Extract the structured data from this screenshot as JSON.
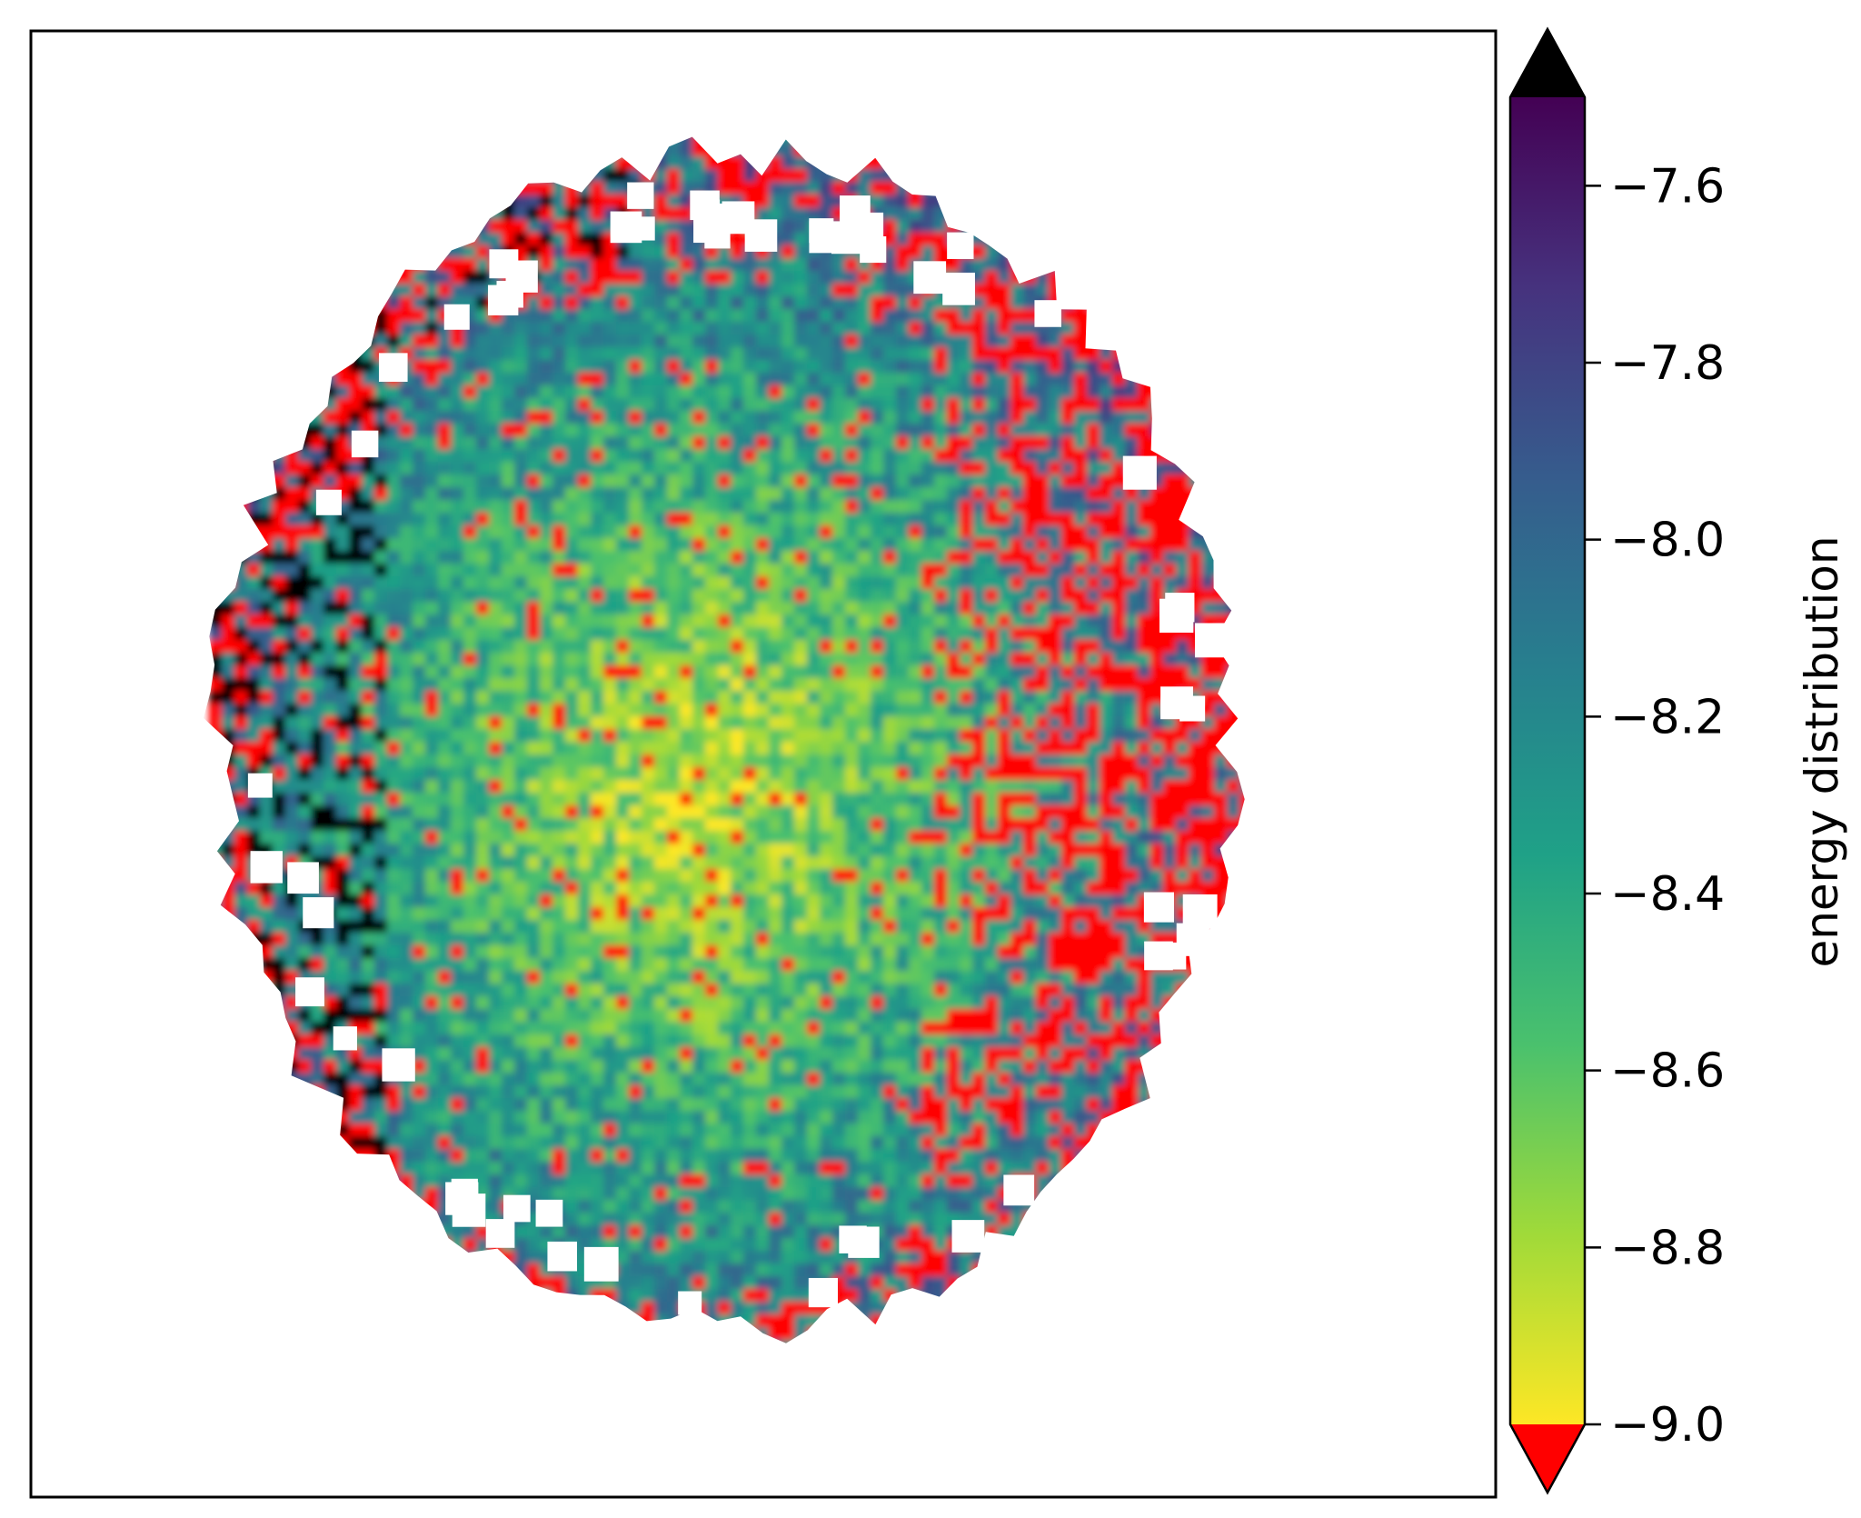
{
  "chart_data": {
    "type": "heatmap",
    "title": "",
    "xlabel": "",
    "ylabel": "",
    "axes_ticks_visible": false,
    "grid": false,
    "colormap": "viridis_r",
    "colorbar": {
      "label": "energy distribution",
      "orientation": "vertical",
      "placement": "right",
      "range": [
        -9.0,
        -7.5
      ],
      "ticks": [
        -9.0,
        -8.8,
        -8.6,
        -8.4,
        -8.2,
        -8.0,
        -7.8,
        -7.6
      ],
      "tick_labels": [
        "−9.0",
        "−8.8",
        "−8.6",
        "−8.4",
        "−8.2",
        "−8.0",
        "−7.8",
        "−7.6"
      ],
      "extend": "both",
      "over_color": "#000000",
      "under_color": "#ff0000",
      "gradient_stops": [
        "#fde725",
        "#a0da39",
        "#4ac16d",
        "#1fa187",
        "#277f8e",
        "#365c8d",
        "#46327e",
        "#440154"
      ]
    },
    "field": {
      "shape": "roughly circular blob",
      "under_region": "right side and outer rim",
      "over_region": "left edge",
      "core_value_approx": -8.9,
      "missing_cells_color": "#ffffff"
    }
  }
}
